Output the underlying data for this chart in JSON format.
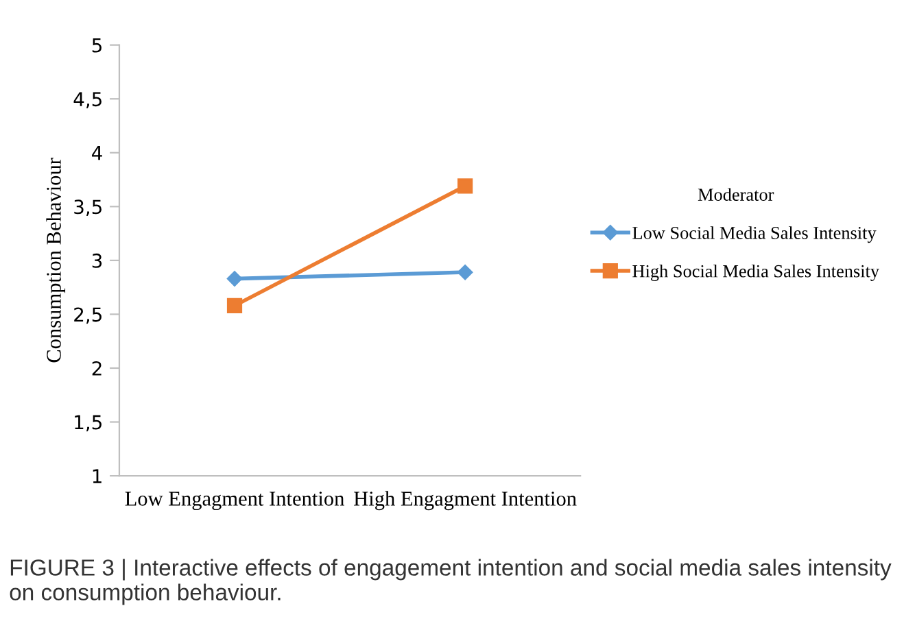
{
  "chart_data": {
    "type": "line",
    "categories": [
      "Low Engagment Intention",
      "High Engagment Intention"
    ],
    "ylabel": "Consumption Behaviour",
    "legend_title": "Moderator",
    "series": [
      {
        "name": "Low Social Media Sales Intensity",
        "color": "#5b9bd5",
        "values": [
          2.83,
          2.89
        ],
        "marker": "diamond"
      },
      {
        "name": "High Social Media Sales Intensity",
        "color": "#ed7d31",
        "values": [
          2.58,
          3.69
        ],
        "marker": "square"
      }
    ],
    "ylim": [
      1,
      5
    ],
    "yticks": [
      1,
      {
        "value": 1.5,
        "label": "1,5"
      },
      2,
      {
        "value": 2.5,
        "label": "2,5"
      },
      3,
      {
        "value": 3.5,
        "label": "3,5"
      },
      4,
      {
        "value": 4.5,
        "label": "4,5"
      },
      5
    ],
    "grid": false,
    "legend": "right",
    "line_style": "solid",
    "annotations": [
      "FIGURE 3 | Interactive effects of engagement intention and social media sales intensity on consumption behaviour."
    ]
  }
}
